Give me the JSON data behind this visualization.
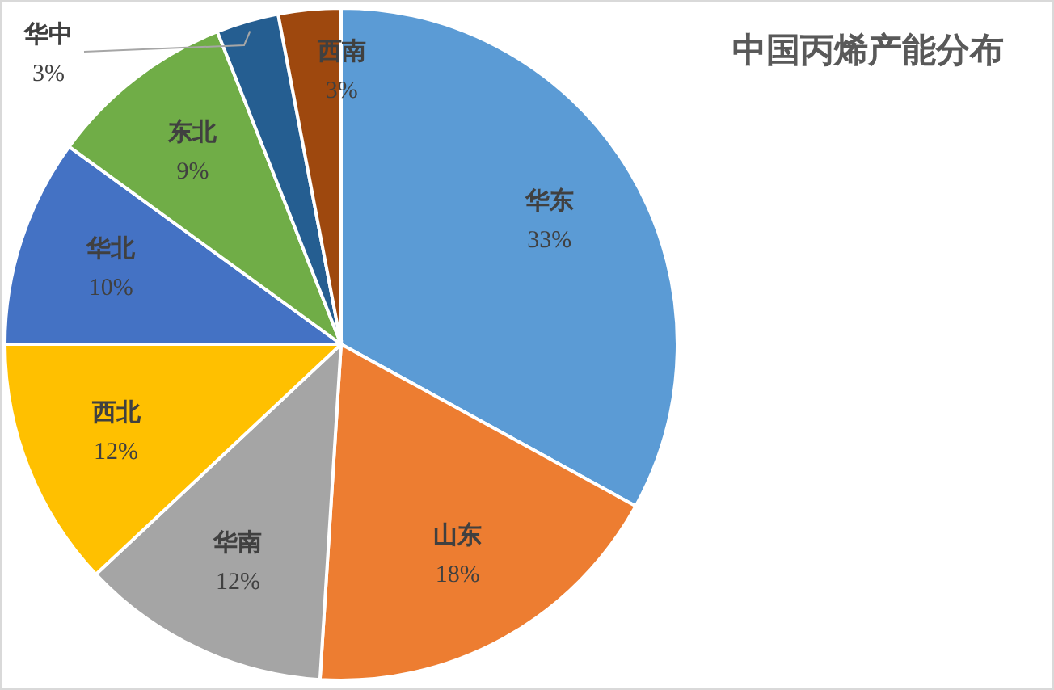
{
  "chart_data": {
    "type": "pie",
    "title": "中国丙烯产能分布",
    "categories": [
      "华东",
      "山东",
      "华南",
      "西北",
      "华北",
      "东北",
      "华中",
      "西南"
    ],
    "values": [
      33,
      18,
      12,
      12,
      10,
      9,
      3,
      3
    ],
    "colors": [
      "#5b9bd5",
      "#ed7d31",
      "#a5a5a5",
      "#ffc000",
      "#4472c4",
      "#70ad47",
      "#255e91",
      "#9e480e"
    ],
    "value_labels": [
      "33%",
      "18%",
      "12%",
      "12%",
      "10%",
      "9%",
      "3%",
      "3%"
    ]
  }
}
